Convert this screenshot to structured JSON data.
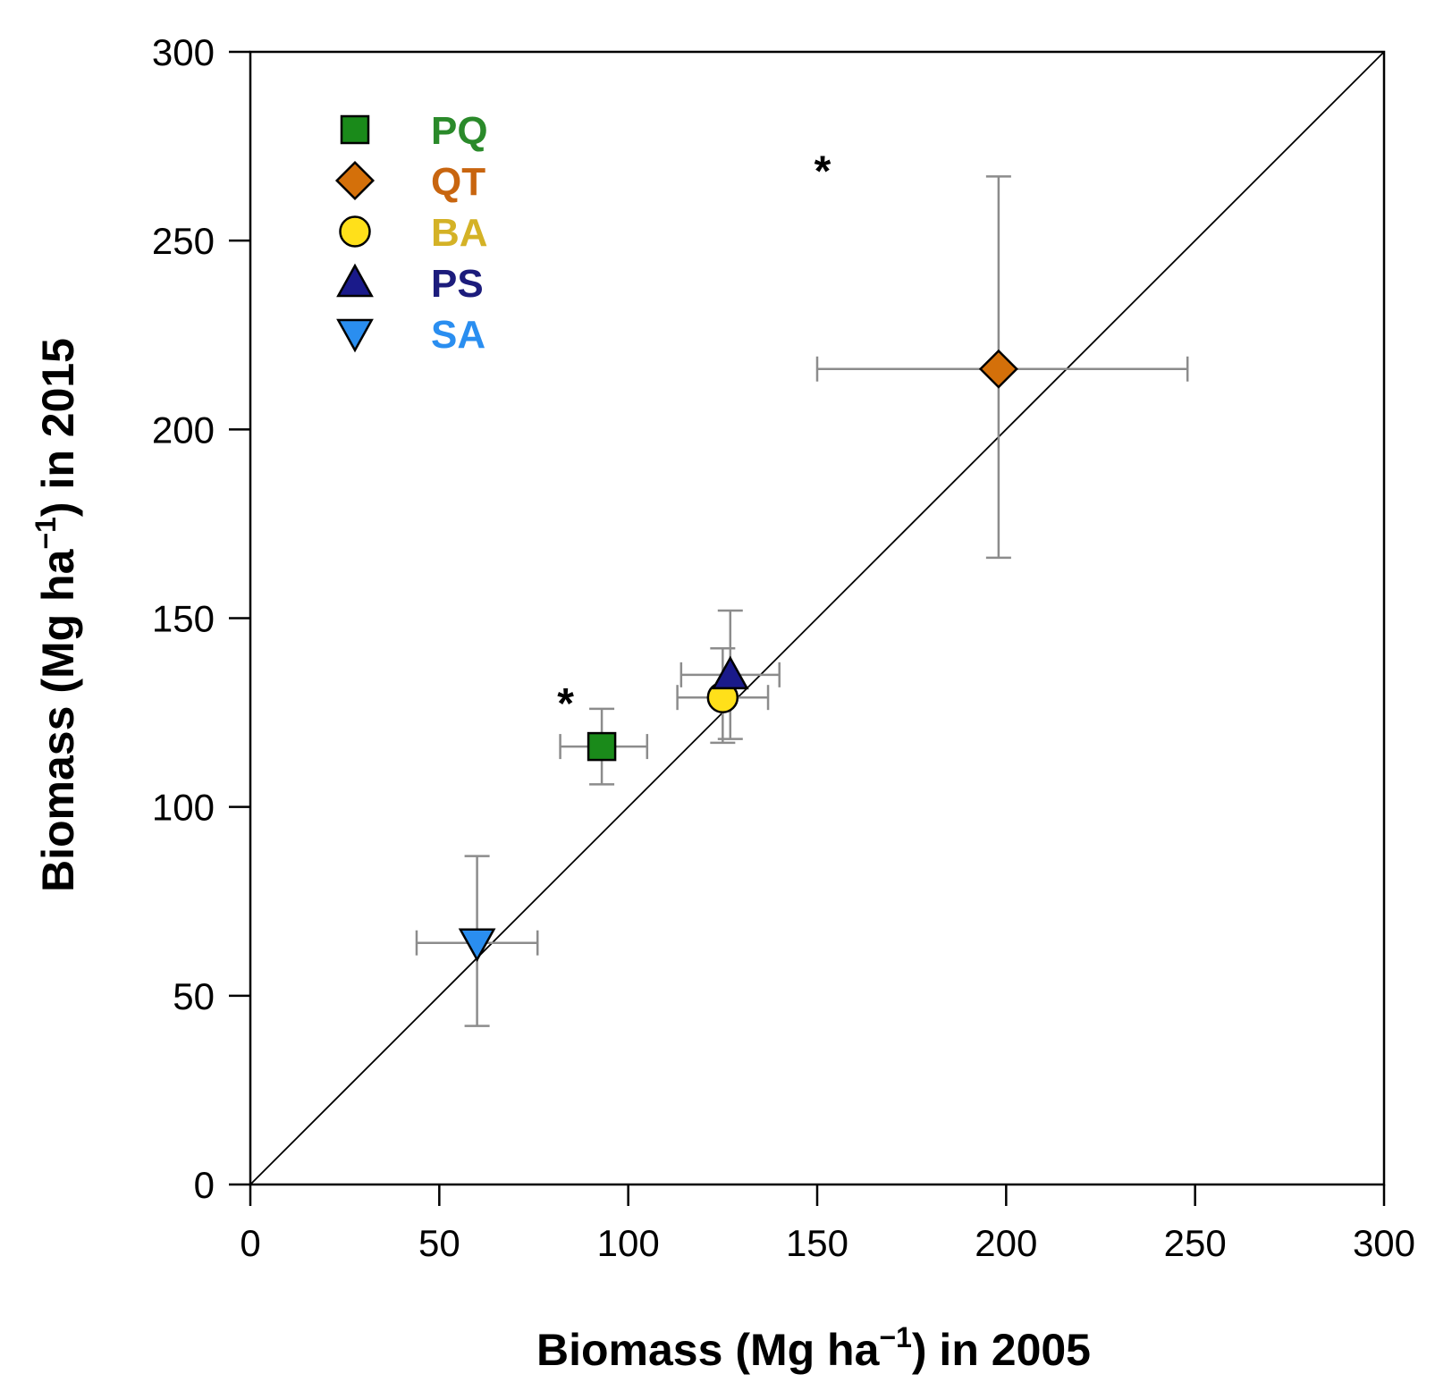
{
  "chart_data": {
    "type": "scatter",
    "xlabel": {
      "pre": "Biomass (Mg ha",
      "sup": "−1",
      "post": ") in 2005"
    },
    "ylabel": {
      "pre": "Biomass (Mg ha",
      "sup": "−1",
      "post": ") in 2015"
    },
    "xlim": [
      0,
      300
    ],
    "ylim": [
      0,
      300
    ],
    "xticks": [
      0,
      50,
      100,
      150,
      200,
      250,
      300
    ],
    "yticks": [
      0,
      50,
      100,
      150,
      200,
      250,
      300
    ],
    "grid": false,
    "reference_line": "1:1",
    "legend_placement": "top-left",
    "series": [
      {
        "name": "PQ",
        "marker": "square",
        "color": "#1a8a1a",
        "text_color": "#2a8a2a",
        "x": 93,
        "y": 116,
        "x_err": [
          82,
          105
        ],
        "y_err": [
          106,
          126
        ],
        "significant": true
      },
      {
        "name": "QT",
        "marker": "diamond",
        "color": "#d4700a",
        "text_color": "#c8650f",
        "x": 198,
        "y": 216,
        "x_err": [
          150,
          248
        ],
        "y_err": [
          166,
          267
        ],
        "significant": true
      },
      {
        "name": "BA",
        "marker": "circle",
        "color": "#ffe01a",
        "text_color": "#d4b226",
        "x": 125,
        "y": 129,
        "x_err": [
          113,
          137
        ],
        "y_err": [
          117,
          142
        ],
        "significant": false
      },
      {
        "name": "PS",
        "marker": "triangle-up",
        "color": "#1a1a8a",
        "text_color": "#1c1c7c",
        "x": 127,
        "y": 135,
        "x_err": [
          114,
          140
        ],
        "y_err": [
          118,
          152
        ],
        "significant": false
      },
      {
        "name": "SA",
        "marker": "triangle-down",
        "color": "#2a8ef0",
        "text_color": "#2a8ef0",
        "x": 60,
        "y": 64,
        "x_err": [
          44,
          76
        ],
        "y_err": [
          42,
          87
        ],
        "significant": false
      }
    ],
    "annotation_text": "*"
  }
}
